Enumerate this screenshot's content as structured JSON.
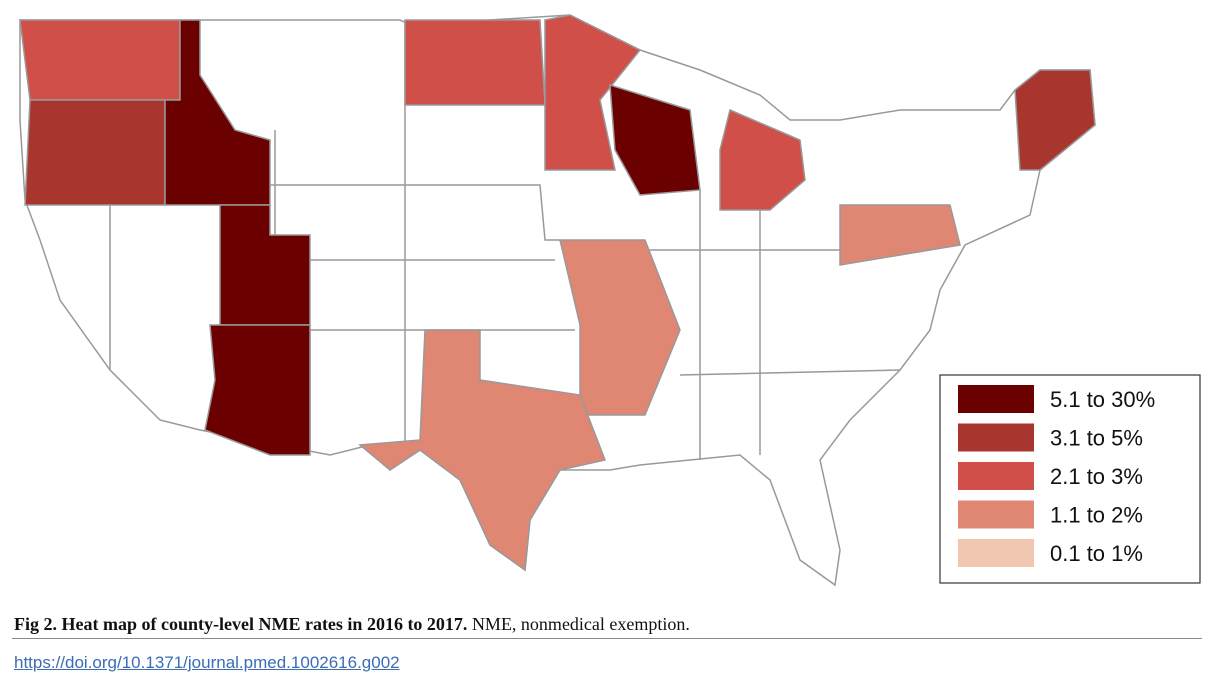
{
  "legend": [
    {
      "label": "5.1 to 30%",
      "color": "#6b0000"
    },
    {
      "label": "3.1 to 5%",
      "color": "#a8362f"
    },
    {
      "label": "2.1 to 3%",
      "color": "#d04f48"
    },
    {
      "label": "1.1 to 2%",
      "color": "#e08774"
    },
    {
      "label": "0.1 to 1%",
      "color": "#f1c7b2"
    }
  ],
  "caption": {
    "title": "Fig 2. Heat map of county-level NME rates in 2016 to 2017.",
    "text": " NME, nonmedical exemption."
  },
  "doi": "https://doi.org/10.1371/journal.pmed.1002616.g002"
}
